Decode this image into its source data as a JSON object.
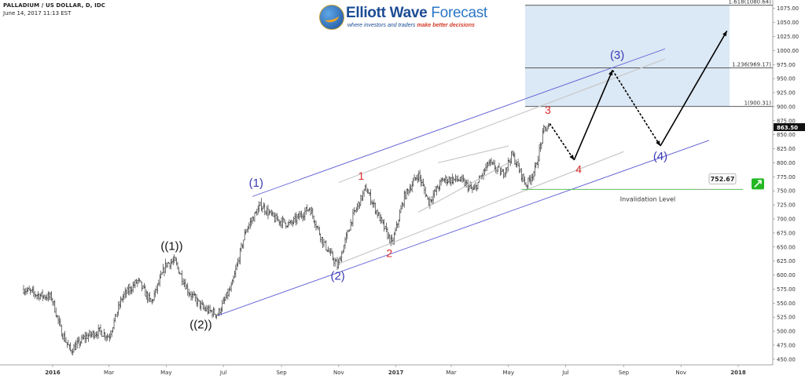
{
  "header": {
    "symbol": "PALLADIUM / US DOLLAR, D, IDC",
    "datetime": "June 14, 2017 11:13 EST"
  },
  "logo": {
    "brand_bold": "Elliott Wave",
    "brand_light": "Forecast",
    "tagline_start": "where investors and traders",
    "tagline_emph": "make better decisions"
  },
  "colors": {
    "channel": "#5b5bd6",
    "inner_channel": "#c8c8c8",
    "wave_blue": "#3b3bb5",
    "wave_red": "#d92b2b",
    "bars": "#333333",
    "fib_box": "#dbe8f5",
    "invalidation": "#58c058",
    "up_badge": "#23b823"
  },
  "chart_data": {
    "type": "ohlc",
    "x_tick_labels": [
      "2016",
      "Mar",
      "May",
      "Jul",
      "Sep",
      "Nov",
      "2017",
      "Mar",
      "May",
      "Jul",
      "Sep",
      "Nov",
      "2018"
    ],
    "y_axis": {
      "range": [
        440,
        1090
      ],
      "tick_labels": [
        "1075.00",
        "1050.00",
        "1025.00",
        "1000.00",
        "975.00",
        "950.00",
        "925.00",
        "900.00",
        "875.00",
        "850.00",
        "825.00",
        "800.00",
        "775.00",
        "750.00",
        "725.00",
        "700.00",
        "675.00",
        "650.00",
        "625.00",
        "600.00",
        "575.00",
        "550.00",
        "525.00",
        "500.00",
        "475.00",
        "450.00"
      ],
      "tick_values": [
        1075,
        1050,
        1025,
        1000,
        975,
        950,
        925,
        900,
        875,
        850,
        825,
        800,
        775,
        750,
        725,
        700,
        675,
        650,
        625,
        600,
        575,
        550,
        525,
        500,
        475,
        450
      ]
    },
    "price_path": [
      {
        "date": "2015-12-01",
        "price": 575
      },
      {
        "date": "2015-12-15",
        "price": 565
      },
      {
        "date": "2015-12-31",
        "price": 560
      },
      {
        "date": "2016-01-10",
        "price": 500
      },
      {
        "date": "2016-01-20",
        "price": 465
      },
      {
        "date": "2016-02-05",
        "price": 490
      },
      {
        "date": "2016-02-20",
        "price": 500
      },
      {
        "date": "2016-03-01",
        "price": 490
      },
      {
        "date": "2016-03-15",
        "price": 560
      },
      {
        "date": "2016-04-01",
        "price": 590
      },
      {
        "date": "2016-04-15",
        "price": 550
      },
      {
        "date": "2016-05-01",
        "price": 620
      },
      {
        "date": "2016-05-10",
        "price": 625
      },
      {
        "date": "2016-05-25",
        "price": 570
      },
      {
        "date": "2016-06-10",
        "price": 540
      },
      {
        "date": "2016-06-25",
        "price": 530
      },
      {
        "date": "2016-07-10",
        "price": 580
      },
      {
        "date": "2016-07-25",
        "price": 680
      },
      {
        "date": "2016-08-10",
        "price": 725
      },
      {
        "date": "2016-08-25",
        "price": 700
      },
      {
        "date": "2016-09-10",
        "price": 690
      },
      {
        "date": "2016-10-01",
        "price": 720
      },
      {
        "date": "2016-10-15",
        "price": 660
      },
      {
        "date": "2016-10-31",
        "price": 615
      },
      {
        "date": "2016-11-15",
        "price": 700
      },
      {
        "date": "2016-11-30",
        "price": 755
      },
      {
        "date": "2016-12-15",
        "price": 700
      },
      {
        "date": "2016-12-28",
        "price": 655
      },
      {
        "date": "2017-01-10",
        "price": 740
      },
      {
        "date": "2017-01-25",
        "price": 780
      },
      {
        "date": "2017-02-05",
        "price": 730
      },
      {
        "date": "2017-02-20",
        "price": 770
      },
      {
        "date": "2017-03-10",
        "price": 770
      },
      {
        "date": "2017-03-25",
        "price": 750
      },
      {
        "date": "2017-04-10",
        "price": 800
      },
      {
        "date": "2017-04-25",
        "price": 780
      },
      {
        "date": "2017-05-05",
        "price": 815
      },
      {
        "date": "2017-05-20",
        "price": 760
      },
      {
        "date": "2017-05-30",
        "price": 790
      },
      {
        "date": "2017-06-08",
        "price": 860
      },
      {
        "date": "2017-06-14",
        "price": 863.5
      }
    ],
    "last_price": "863.50",
    "fib_levels": [
      {
        "label": "1.618(1080.64)",
        "value": 1080.64
      },
      {
        "label": "1.236(969.17)",
        "value": 969.17
      },
      {
        "label": "1(900.31)",
        "value": 900.31
      }
    ],
    "invalidation": {
      "label": "Invalidation Level",
      "value_label": "752.67",
      "value": 752.67,
      "start_date": "2017-05-15"
    },
    "channel": {
      "lower": [
        {
          "date": "2016-06-25",
          "price": 528
        },
        {
          "date": "2017-12-01",
          "price": 840
        }
      ],
      "upper": [
        {
          "date": "2016-08-01",
          "price": 740
        },
        {
          "date": "2017-10-15",
          "price": 1003
        }
      ]
    },
    "inner_channels": [
      {
        "from": {
          "date": "2016-11-01",
          "price": 765
        },
        "to": {
          "date": "2017-10-15",
          "price": 985
        }
      },
      {
        "from": {
          "date": "2016-11-01",
          "price": 620
        },
        "to": {
          "date": "2017-09-01",
          "price": 820
        }
      },
      {
        "from": {
          "date": "2017-02-15",
          "price": 800
        },
        "to": {
          "date": "2017-05-01",
          "price": 830
        }
      },
      {
        "from": {
          "date": "2017-01-25",
          "price": 712
        },
        "to": {
          "date": "2017-05-01",
          "price": 800
        }
      }
    ],
    "projection": [
      {
        "date": "2017-06-14",
        "price": 870,
        "style": "dashed"
      },
      {
        "date": "2017-07-10",
        "price": 805,
        "style": "solid"
      },
      {
        "date": "2017-08-20",
        "price": 965,
        "style": "dashed"
      },
      {
        "date": "2017-10-10",
        "price": 830,
        "style": "solid"
      },
      {
        "date": "2017-12-20",
        "price": 1035
      }
    ],
    "wave_labels": [
      {
        "text": "((1))",
        "date": "2016-05-07",
        "price": 645,
        "color": "black"
      },
      {
        "text": "((2))",
        "date": "2016-06-07",
        "price": 505,
        "color": "black"
      },
      {
        "text": "(1)",
        "date": "2016-08-05",
        "price": 757,
        "color": "blue"
      },
      {
        "text": "(2)",
        "date": "2016-10-31",
        "price": 592,
        "color": "blue"
      },
      {
        "text": "1",
        "date": "2016-11-25",
        "price": 770,
        "color": "red"
      },
      {
        "text": "2",
        "date": "2016-12-25",
        "price": 632,
        "color": "red"
      },
      {
        "text": "3",
        "date": "2017-06-12",
        "price": 887,
        "color": "red"
      },
      {
        "text": "4",
        "date": "2017-07-15",
        "price": 782,
        "color": "red"
      },
      {
        "text": "(3)",
        "date": "2017-08-25",
        "price": 985,
        "color": "blue"
      },
      {
        "text": "(4)",
        "date": "2017-10-10",
        "price": 805,
        "color": "blue"
      }
    ]
  }
}
